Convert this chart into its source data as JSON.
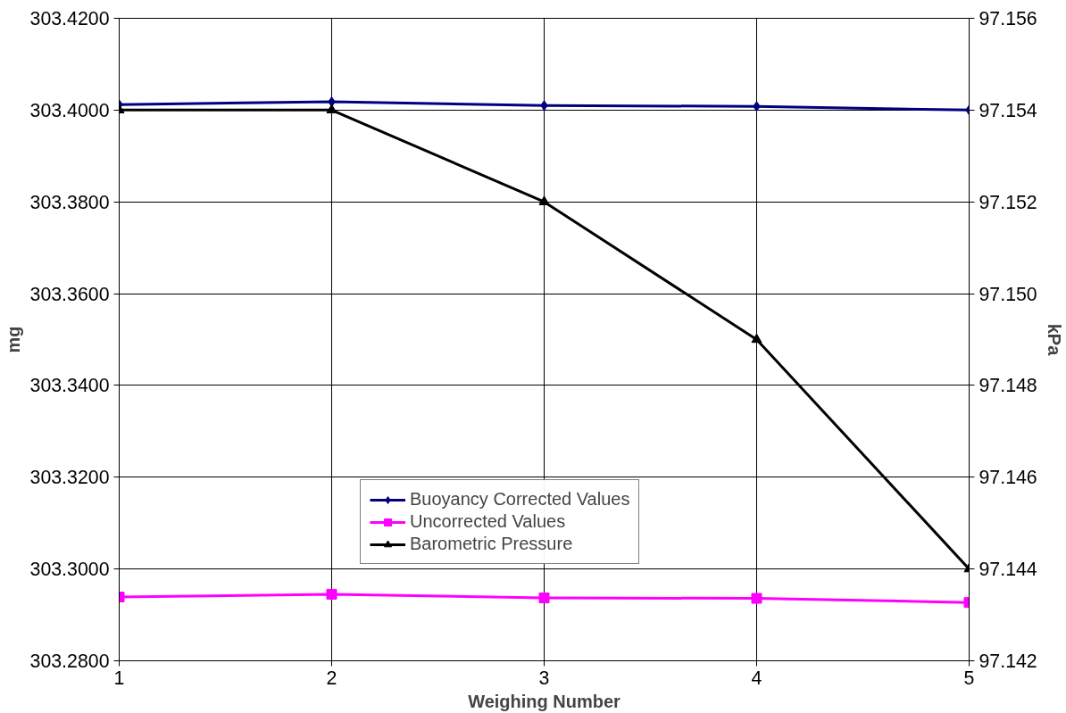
{
  "chart_data": {
    "type": "line",
    "xlabel": "Weighing Number",
    "ylabel": "mg",
    "y2label": "kPa",
    "x": [
      1,
      2,
      3,
      4,
      5
    ],
    "xlim": [
      1,
      5
    ],
    "xticks": [
      1,
      2,
      3,
      4,
      5
    ],
    "ylim": [
      303.28,
      303.42
    ],
    "yticks": [
      {
        "value": 303.28,
        "label": "303.2800"
      },
      {
        "value": 303.3,
        "label": "303.3000"
      },
      {
        "value": 303.32,
        "label": "303.3200"
      },
      {
        "value": 303.34,
        "label": "303.3400"
      },
      {
        "value": 303.36,
        "label": "303.3600"
      },
      {
        "value": 303.38,
        "label": "303.3800"
      },
      {
        "value": 303.4,
        "label": "303.4000"
      },
      {
        "value": 303.42,
        "label": "303.4200"
      }
    ],
    "y2lim": [
      97.142,
      97.156
    ],
    "y2ticks": [
      {
        "value": 97.142,
        "label": "97.142"
      },
      {
        "value": 97.144,
        "label": "97.144"
      },
      {
        "value": 97.146,
        "label": "97.146"
      },
      {
        "value": 97.148,
        "label": "97.148"
      },
      {
        "value": 97.15,
        "label": "97.150"
      },
      {
        "value": 97.152,
        "label": "97.152"
      },
      {
        "value": 97.154,
        "label": "97.154"
      },
      {
        "value": 97.156,
        "label": "97.156"
      }
    ],
    "grid": true,
    "legend": "bottom",
    "series": [
      {
        "name": "Buoyancy Corrected Values",
        "color": "#000080",
        "marker": "diamond",
        "values": [
          303.4012,
          303.4018,
          303.401,
          303.4008,
          303.4
        ]
      },
      {
        "name": "Uncorrected Values",
        "color": "#ff00ff",
        "marker": "square",
        "values": [
          303.2939,
          303.2945,
          303.2937,
          303.2936,
          303.2927
        ]
      },
      {
        "name": "Barometric Pressure",
        "color": "#000000",
        "marker": "triangle",
        "axis": "y2",
        "values": [
          97.154,
          97.154,
          97.152,
          97.149,
          97.144
        ]
      }
    ]
  }
}
